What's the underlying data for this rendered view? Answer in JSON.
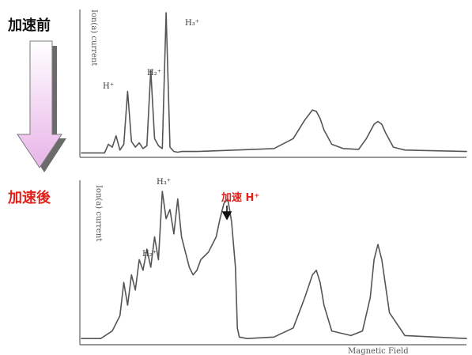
{
  "labels": {
    "before": "加速前",
    "after": "加速後",
    "accelerated_h": "加速 H⁺",
    "top_y_axis": "Ion(a) current",
    "bottom_y_axis": "Ion(a) current",
    "x_axis": "Magnetic Field"
  },
  "colors": {
    "trace": "#555555",
    "highlight": "#e0201a",
    "arrow_top": "#ffffff",
    "arrow_bottom": "#e8b4e8",
    "arrow_shadow": "#6b6b6b"
  },
  "chart_data": [
    {
      "type": "line",
      "panel": "before",
      "ylabel": "Ion(a) current",
      "xlim": [
        0,
        100
      ],
      "ylim": [
        0,
        100
      ],
      "x": [
        0,
        6,
        7,
        8,
        9,
        10,
        11,
        12,
        13,
        14,
        15,
        16,
        17,
        18,
        19,
        20,
        21,
        22,
        23,
        24,
        25,
        26,
        27,
        28,
        29,
        30,
        40,
        50,
        55,
        58,
        60,
        61,
        62,
        63,
        65,
        68,
        72,
        74,
        76,
        77,
        78,
        79,
        81,
        84,
        100
      ],
      "y": [
        2,
        2,
        8,
        6,
        14,
        4,
        8,
        45,
        10,
        6,
        9,
        5,
        7,
        60,
        12,
        7,
        5,
        100,
        6,
        3,
        2.5,
        3,
        3,
        3,
        3,
        3,
        4,
        5,
        12,
        25,
        32,
        31,
        26,
        18,
        8,
        5,
        4.5,
        12,
        22,
        24,
        22,
        16,
        6,
        4,
        3
      ],
      "peak_labels": [
        "H⁺",
        "H₂⁺",
        "H₃⁺"
      ]
    },
    {
      "type": "line",
      "panel": "after",
      "ylabel": "Ion(a) current",
      "xlabel": "Magnetic Field",
      "xlim": [
        0,
        100
      ],
      "ylim": [
        0,
        100
      ],
      "x": [
        0,
        5,
        8,
        10,
        11,
        12,
        13,
        14,
        15,
        16,
        17,
        18,
        19,
        20,
        21,
        22,
        23,
        24,
        25,
        26,
        27,
        28,
        29,
        30,
        31,
        33,
        35,
        36,
        37,
        38,
        39,
        40,
        40.5,
        41,
        43,
        50,
        55,
        58,
        60,
        61,
        62,
        63,
        65,
        70,
        73,
        75,
        76,
        77,
        78,
        80,
        84,
        100
      ],
      "y": [
        3,
        3,
        8,
        18,
        40,
        25,
        45,
        35,
        55,
        48,
        62,
        50,
        70,
        55,
        100,
        82,
        88,
        72,
        95,
        70,
        60,
        50,
        45,
        48,
        55,
        60,
        70,
        82,
        92,
        95,
        80,
        50,
        10,
        4,
        3,
        4,
        10,
        30,
        45,
        48,
        40,
        25,
        8,
        5,
        8,
        30,
        55,
        65,
        55,
        20,
        5,
        3
      ],
      "peak_labels": [
        "H₂⁺",
        "H₃⁺"
      ],
      "annotation": "加速 H⁺"
    }
  ]
}
